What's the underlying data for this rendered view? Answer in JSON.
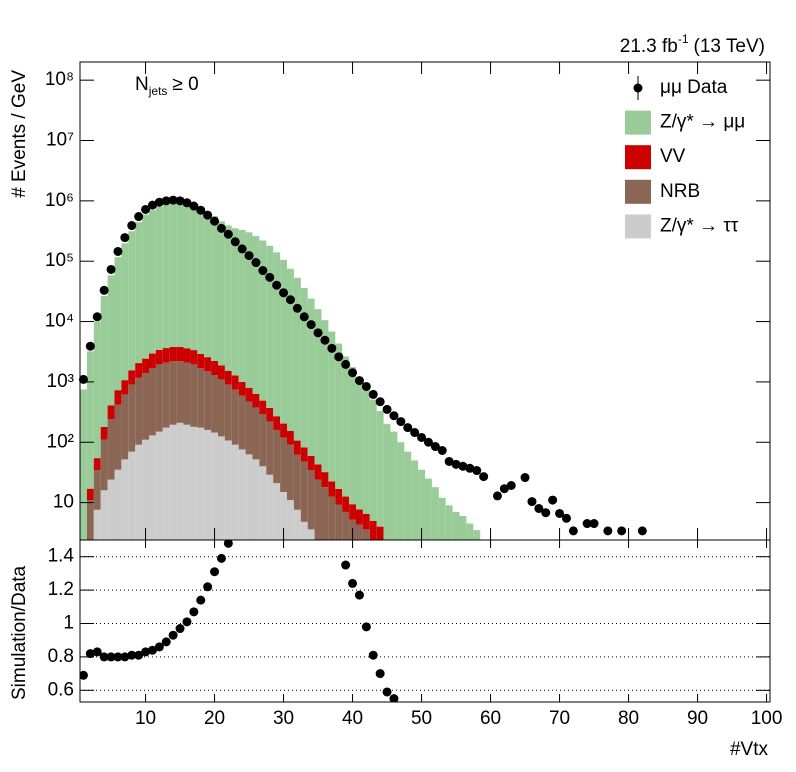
{
  "chart_data": [
    {
      "type": "bar",
      "stacked": true,
      "log_y": true,
      "ylabel": "# Events / GeV",
      "annotations": [
        {
          "text": "21.3 fb",
          "superscript": "-1",
          "suffix": "(13 TeV)"
        },
        {
          "text": "N",
          "subscript": "jets",
          "suffix": "≥ 0"
        }
      ],
      "legend": "top-right",
      "xlim": [
        0.5,
        100.5
      ],
      "ylim": [
        2.4,
        200000000
      ],
      "yticks": [
        10,
        {
          "value": 100,
          "label": "10²"
        },
        {
          "value": 1000,
          "label": "10³"
        },
        {
          "value": 10000,
          "label": "10⁴"
        },
        {
          "value": 100000,
          "label": "10⁵"
        },
        {
          "value": 1000000,
          "label": "10⁶"
        },
        {
          "value": 10000000,
          "label": "10⁷"
        },
        {
          "value": 100000000,
          "label": "10⁸"
        }
      ],
      "x": [
        1,
        2,
        3,
        4,
        5,
        6,
        7,
        8,
        9,
        10,
        11,
        12,
        13,
        14,
        15,
        16,
        17,
        18,
        19,
        20,
        21,
        22,
        23,
        24,
        25,
        26,
        27,
        28,
        29,
        30,
        31,
        32,
        33,
        34,
        35,
        36,
        37,
        38,
        39,
        40,
        41,
        42,
        43,
        44,
        45,
        46,
        47,
        48,
        49,
        50,
        51,
        52,
        53,
        54,
        55,
        56,
        57,
        58,
        59,
        60,
        61,
        62,
        63,
        64,
        65,
        66,
        67,
        68,
        69,
        70,
        71,
        72,
        73,
        74,
        75,
        76,
        77,
        78,
        79,
        80,
        81,
        82
      ],
      "series": [
        {
          "name": "μμ Data",
          "type": "points",
          "color": "#000000",
          "values": [
            1100,
            3900,
            12000,
            33000,
            73000,
            145000,
            246000,
            390000,
            550000,
            720000,
            850000,
            950000,
            1000000,
            1030000,
            1000000,
            930000,
            820000,
            700000,
            580000,
            460000,
            350000,
            280000,
            210000,
            160000,
            124000,
            95000,
            70000,
            54000,
            40000,
            30000,
            23000,
            16600,
            12000,
            8900,
            6500,
            4900,
            3600,
            2600,
            1950,
            1420,
            1050,
            840,
            620,
            470,
            350,
            275,
            220,
            175,
            145,
            120,
            100,
            85,
            73,
            48,
            43,
            40,
            37,
            34,
            27,
            null,
            12.9,
            17,
            19.2,
            null,
            26,
            10.4,
            8,
            6.8,
            11,
            6.6,
            5.5,
            3.4,
            null,
            4.5,
            4.5,
            null,
            3.4,
            null,
            3.4,
            null,
            null,
            3.4
          ]
        },
        {
          "name": "Z/γ* → μμ",
          "type": "stack",
          "color": "#99cc99",
          "values": [
            750,
            3200,
            10000,
            26400,
            58000,
            116000,
            197000,
            312000,
            440000,
            590000,
            700000,
            800000,
            870000,
            925000,
            940000,
            910000,
            850000,
            770000,
            670000,
            560000,
            455000,
            390000,
            350000,
            330000,
            300000,
            260000,
            220000,
            180000,
            140000,
            105000,
            75000,
            53000,
            36000,
            24000,
            16000,
            10500,
            6800,
            4300,
            2630,
            1750,
            1210,
            815,
            505,
            325,
            200,
            150,
            100,
            70,
            50,
            35,
            25,
            18,
            12,
            9,
            7,
            6,
            4.5,
            3.5,
            null,
            null,
            null,
            null,
            null,
            null,
            null,
            null,
            null,
            null,
            null,
            null,
            null,
            null,
            null,
            null,
            null,
            null,
            null,
            null,
            null,
            null,
            null,
            null
          ]
        },
        {
          "name": "VV",
          "type": "stack",
          "color": "#cc0000",
          "values": [
            null,
            6,
            20,
            70,
            170,
            310,
            450,
            660,
            870,
            1030,
            1250,
            1440,
            1540,
            1600,
            1590,
            1520,
            1420,
            1220,
            1070,
            920,
            780,
            630,
            530,
            410,
            330,
            260,
            200,
            150,
            110,
            84,
            64,
            44,
            34,
            25,
            19,
            14,
            10,
            7.5,
            5.6,
            4.2,
            3.4,
            2.9,
            5,
            4,
            null,
            null,
            null,
            null,
            null,
            null,
            null,
            null,
            null,
            null,
            null,
            null,
            null,
            null,
            null,
            null,
            null,
            null,
            null,
            null,
            null,
            null,
            null,
            null,
            null,
            null,
            null,
            null,
            null,
            null,
            null,
            null,
            null,
            null,
            null,
            null,
            null,
            null
          ]
        },
        {
          "name": "NRB",
          "type": "stack",
          "color": "#8b6655",
          "values": [
            null,
            11,
            27,
            94,
            216,
            385,
            568,
            830,
            1090,
            1290,
            1570,
            1800,
            1925,
            2005,
            1990,
            1905,
            1770,
            1525,
            1340,
            1155,
            975,
            793,
            659,
            514,
            407,
            323,
            250,
            191,
            139,
            105,
            80,
            55,
            43,
            31,
            24,
            18,
            12.5,
            9.3,
            7,
            5.2,
            4.3,
            3.6,
            null,
            null,
            null,
            null,
            null,
            null,
            null,
            null,
            null,
            null,
            null,
            null,
            null,
            null,
            null,
            null,
            null,
            null,
            null,
            null,
            null,
            null,
            null,
            null,
            null,
            null,
            null,
            null,
            null,
            null,
            null,
            null,
            null,
            null,
            null,
            null,
            null,
            null,
            null,
            null
          ]
        },
        {
          "name": "Z/γ* → ττ",
          "type": "stack",
          "color": "#cccccc",
          "values": [
            null,
            null,
            7.6,
            16,
            24,
            35,
            52,
            70,
            91,
            110,
            130,
            150,
            175,
            195,
            210,
            195,
            180,
            175,
            160,
            145,
            125,
            107,
            91,
            76,
            63,
            52,
            40,
            29,
            21,
            15,
            11,
            7.6,
            4.8,
            3.6,
            null,
            null,
            null,
            null,
            null,
            null,
            null,
            null,
            null,
            null,
            null,
            null,
            null,
            null,
            null,
            null,
            null,
            null,
            null,
            null,
            null,
            null,
            null,
            null,
            null,
            null,
            null,
            null,
            null,
            null,
            null,
            null,
            null,
            null,
            null,
            null,
            null,
            null,
            null,
            null,
            null,
            null,
            null,
            null,
            null,
            null,
            null,
            null
          ]
        }
      ]
    },
    {
      "type": "scatter",
      "ylabel": "Simulation/Data",
      "xlabel": "#Vtx",
      "grid": true,
      "color": "#000000",
      "xlim": [
        0.5,
        100.5
      ],
      "ylim": [
        0.53,
        1.5
      ],
      "xticks": [
        10,
        20,
        30,
        40,
        50,
        60,
        70,
        80,
        90,
        100
      ],
      "yticks": [
        0.6,
        0.8,
        1,
        1.2,
        1.4
      ],
      "x": [
        1,
        2,
        3,
        4,
        5,
        6,
        7,
        8,
        9,
        10,
        11,
        12,
        13,
        14,
        15,
        16,
        17,
        18,
        19,
        20,
        21,
        22,
        39,
        40,
        41,
        42,
        43,
        44,
        45,
        46
      ],
      "values": [
        0.69,
        0.82,
        0.83,
        0.8,
        0.8,
        0.8,
        0.8,
        0.81,
        0.81,
        0.83,
        0.84,
        0.86,
        0.89,
        0.93,
        0.97,
        1.01,
        1.07,
        1.14,
        1.22,
        1.31,
        1.39,
        1.48,
        1.35,
        1.24,
        1.17,
        0.98,
        0.81,
        0.7,
        0.59,
        0.55
      ]
    }
  ]
}
